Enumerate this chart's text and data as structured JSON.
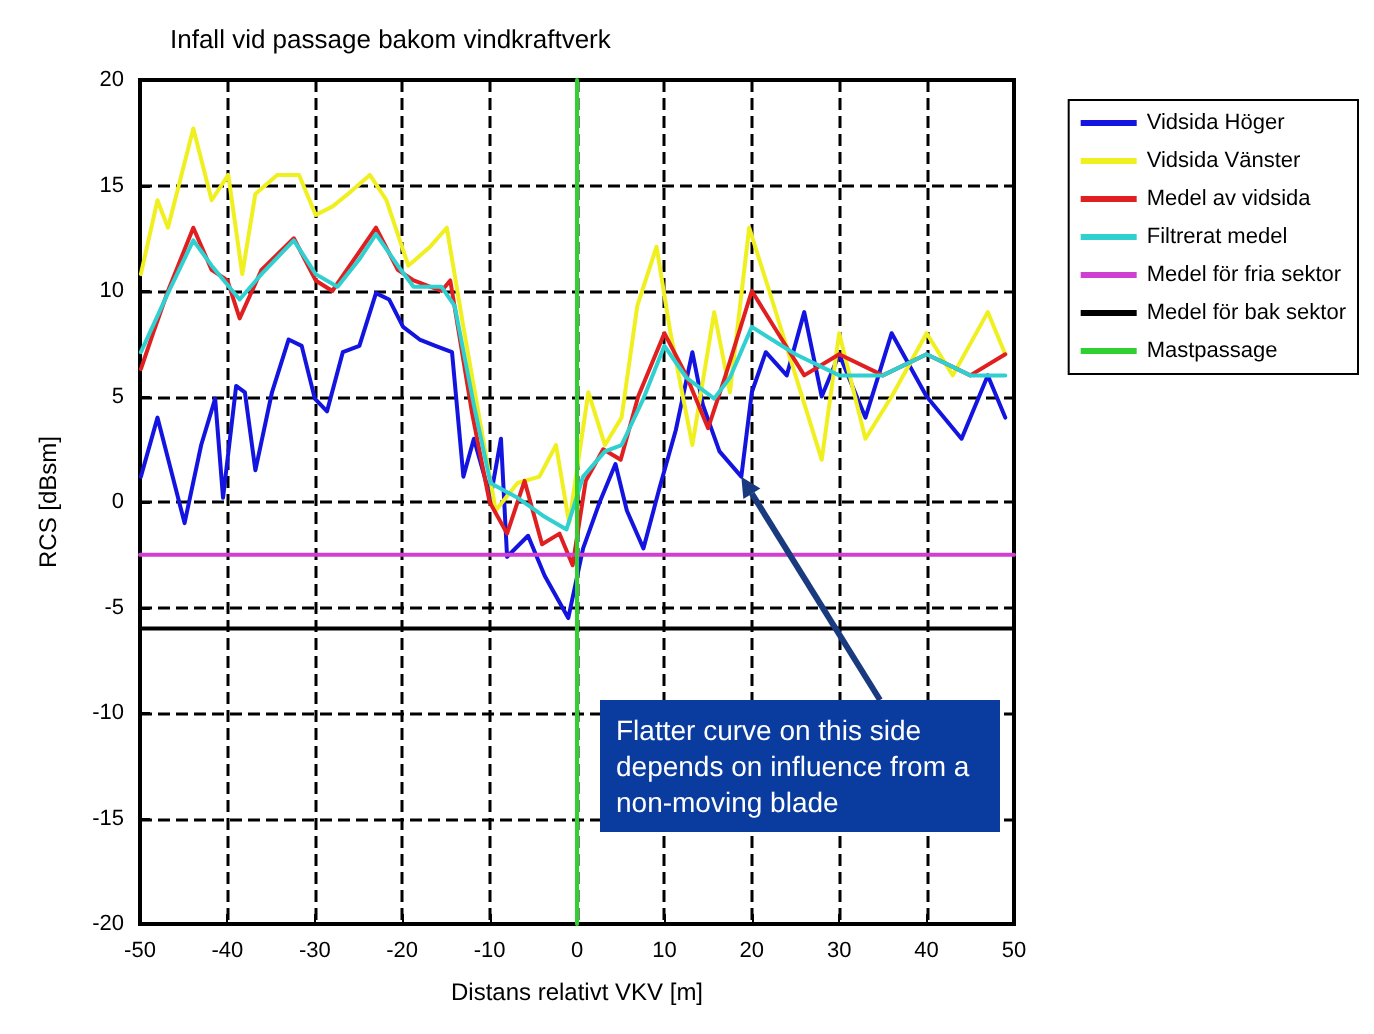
{
  "chart_data": {
    "type": "line",
    "title": "Infall vid passage bakom vindkraftverk",
    "xlabel": "Distans relativt VKV [m]",
    "ylabel": "RCS [dBsm]",
    "xlim": [
      -50,
      50
    ],
    "xticks": [
      -50,
      -40,
      -30,
      -20,
      -10,
      0,
      10,
      20,
      30,
      40,
      50
    ],
    "ylim": [
      -20,
      20
    ],
    "yticks": [
      -20,
      -15,
      -10,
      -5,
      0,
      5,
      10,
      15,
      20
    ],
    "grid": true,
    "legend": "right",
    "line_style": "solid",
    "marker": "none",
    "series": [
      {
        "name": "Vidsida Höger",
        "color": "#1414e0",
        "x": [
          -49.9,
          -48,
          -44.9,
          -43,
          -41.4,
          -40.5,
          -39,
          -38,
          -36.8,
          -34.9,
          -33,
          -31.5,
          -30,
          -28.6,
          -26.8,
          -24.9,
          -23,
          -21.5,
          -19.9,
          -18,
          -16.2,
          -14.3,
          -13,
          -11.8,
          -9.9,
          -8.7,
          -8,
          -5.6,
          -3.7,
          -1,
          0.7,
          2.6,
          4.4,
          5.7,
          7.6,
          9.4,
          11.3,
          13.2,
          14.4,
          16.3,
          18.8,
          20,
          21.6,
          24,
          26,
          28,
          30,
          33,
          36,
          40,
          44,
          47,
          49
        ],
        "values": [
          1.2,
          4,
          -1,
          2.7,
          4.9,
          0.2,
          5.5,
          5.2,
          1.5,
          5.2,
          7.7,
          7.4,
          4.9,
          4.3,
          7.1,
          7.4,
          9.9,
          9.6,
          8.3,
          7.7,
          7.4,
          7.1,
          1.2,
          3,
          0.2,
          3,
          -2.6,
          -1.6,
          -3.5,
          -5.5,
          -2.2,
          0,
          1.8,
          -0.4,
          -2.2,
          0.6,
          3.4,
          7.1,
          4.6,
          2.4,
          1.2,
          5.2,
          7.1,
          6,
          9,
          5,
          7,
          4,
          8,
          5,
          3,
          6,
          4
        ]
      },
      {
        "name": "Vidsida Vänster",
        "color": "#f0f020",
        "x": [
          -49.9,
          -48,
          -46.8,
          -43.9,
          -41.8,
          -39.9,
          -38.3,
          -36.8,
          -34.3,
          -31.8,
          -29.9,
          -28,
          -26.2,
          -23.7,
          -21.8,
          -19.3,
          -16.8,
          -14.9,
          -13,
          -10.5,
          -9.3,
          -6.8,
          -4.3,
          -2.4,
          -0.9,
          1.3,
          3.2,
          5.1,
          6.9,
          9.1,
          10.7,
          13.2,
          15.7,
          17.5,
          19.7,
          22,
          25,
          28,
          30,
          33,
          36,
          40,
          43,
          47,
          49
        ],
        "values": [
          10.8,
          14.3,
          13,
          17.7,
          14.3,
          15.5,
          10.8,
          14.6,
          15.5,
          15.5,
          13.6,
          14,
          14.6,
          15.5,
          14.3,
          11.2,
          12.1,
          13,
          8.3,
          2.4,
          -0.4,
          0.9,
          1.2,
          2.7,
          -1,
          5.2,
          2.7,
          4,
          9.3,
          12.1,
          8,
          2.7,
          9,
          5.2,
          13,
          10,
          6,
          2,
          8,
          3,
          5,
          8,
          6,
          9,
          7
        ]
      },
      {
        "name": "Medel av vidsida",
        "color": "#e02020",
        "x": [
          -49.9,
          -48.5,
          -46.8,
          -43.9,
          -41.8,
          -40,
          -38.6,
          -36.1,
          -32.4,
          -29.9,
          -28,
          -26,
          -23,
          -20.5,
          -18.7,
          -15.5,
          -14.5,
          -12,
          -10,
          -8,
          -6,
          -4,
          -2,
          -0.5,
          1,
          3,
          5,
          7,
          10,
          12.5,
          15,
          17,
          20,
          23,
          26,
          30,
          35,
          40,
          45,
          49
        ],
        "values": [
          6.3,
          8,
          10,
          13,
          11,
          10.5,
          8.7,
          11,
          12.5,
          10.5,
          10,
          11.2,
          13,
          11,
          10.5,
          10,
          10.5,
          4.2,
          0,
          -1.5,
          1,
          -2,
          -1.5,
          -3,
          1,
          2.5,
          2,
          5,
          8,
          6,
          3.5,
          6,
          10,
          8,
          6,
          7,
          6,
          7,
          6,
          7
        ]
      },
      {
        "name": "Filtrerat medel",
        "color": "#30d0d0",
        "x": [
          -49.9,
          -46.8,
          -43.9,
          -41.8,
          -38.6,
          -36.1,
          -32.4,
          -29.9,
          -27.4,
          -24.9,
          -23,
          -20.5,
          -18.7,
          -15.5,
          -14,
          -11.8,
          -9.9,
          -6.8,
          -3.7,
          -1.2,
          0.7,
          3.2,
          5.1,
          7.6,
          10,
          12.5,
          15.7,
          17.5,
          20,
          25,
          30,
          35,
          40,
          45,
          49
        ],
        "values": [
          7.1,
          9.9,
          12.4,
          11.2,
          9.6,
          10.8,
          12.4,
          10.8,
          10.2,
          11.5,
          12.7,
          11.2,
          10.2,
          10.2,
          9.3,
          4.6,
          0.9,
          0.2,
          -0.7,
          -1.3,
          1.2,
          2.4,
          2.7,
          4.9,
          7.4,
          5.9,
          4.9,
          5.9,
          8.3,
          7,
          6,
          6,
          7,
          6,
          6
        ]
      },
      {
        "name": "Medel för fria sektor",
        "color": "#d040d0",
        "x": [
          -50,
          50
        ],
        "values": [
          -2.5,
          -2.5
        ]
      },
      {
        "name": "Medel för bak sektor",
        "color": "#000000",
        "x": [
          -50,
          50
        ],
        "values": [
          -6,
          -6
        ]
      },
      {
        "name": "Mastpassage",
        "color": "#30d030",
        "x": [
          0,
          0
        ],
        "values": [
          -20,
          20
        ]
      }
    ],
    "annotations": [
      "Flatter curve  on this side depends on influence from a non-moving blade"
    ]
  }
}
